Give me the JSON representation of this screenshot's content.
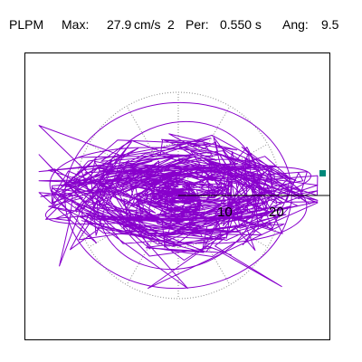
{
  "header": {
    "channel": "PLPM",
    "max_label": "Max:",
    "max_value": "27.9",
    "max_unit": "cm/s",
    "max_unit_exp": "2",
    "per_label": "Per:",
    "per_value": "0.550 s",
    "ang_label": "Ang:",
    "ang_value": "9.5"
  },
  "polar": {
    "ring_labels": [
      "10",
      "20"
    ],
    "colors": {
      "trace": "#8800cc",
      "grid": "#888888",
      "axis": "#000000",
      "marker": "#00897b"
    }
  }
}
